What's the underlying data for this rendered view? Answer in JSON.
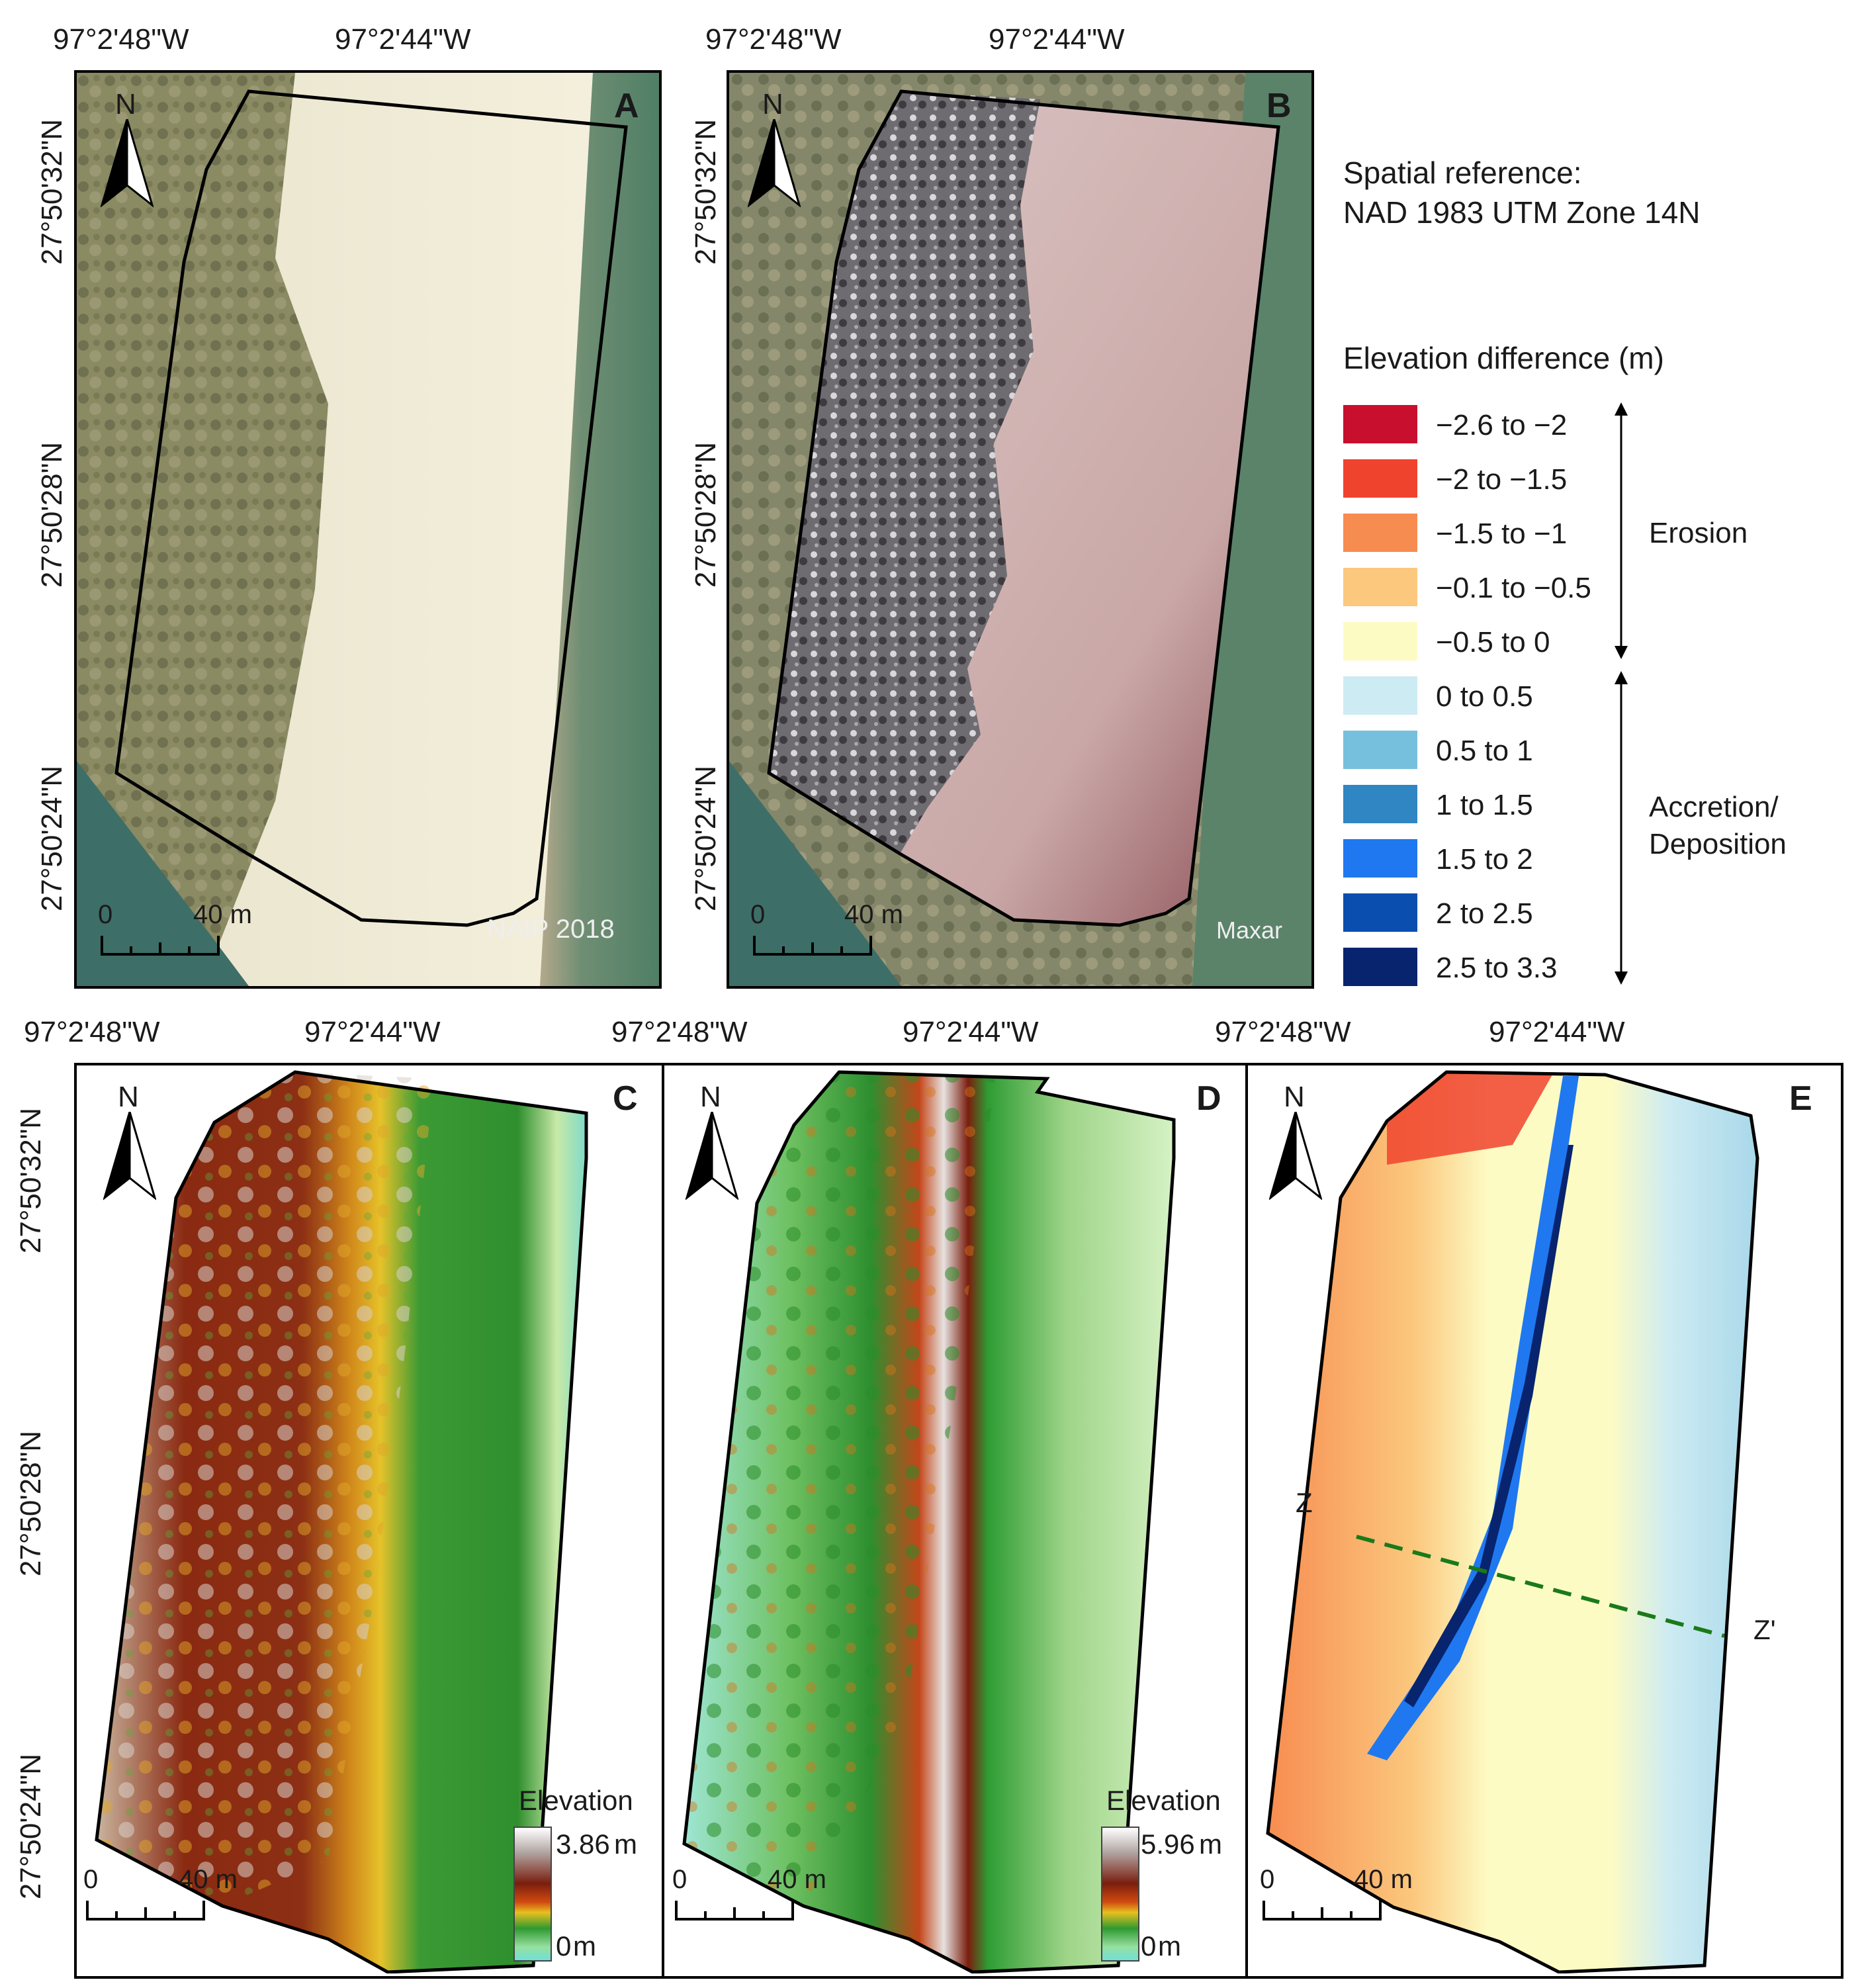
{
  "top_coords": {
    "lon_left": "97°2'48\"W",
    "lon_right": "97°2'44\"W",
    "lat_top": "27°50'32\"N",
    "lat_mid": "27°50'28\"N",
    "lat_bot": "27°50'24\"N"
  },
  "north_label": "N",
  "panels": {
    "A": {
      "letter": "A",
      "credit": "NAIP 2018",
      "scale_zero": "0",
      "scale_end": "40 m"
    },
    "B": {
      "letter": "B",
      "credit": "Maxar",
      "scale_zero": "0",
      "scale_end": "40 m"
    },
    "C": {
      "letter": "C",
      "scale_zero": "0",
      "scale_end": "40 m",
      "elev_title": "Elevation",
      "elev_max": "3.86",
      "elev_min": "0",
      "unit": "m"
    },
    "D": {
      "letter": "D",
      "scale_zero": "0",
      "scale_end": "40 m",
      "elev_title": "Elevation",
      "elev_max": "5.96",
      "elev_min": "0",
      "unit": "m"
    },
    "E": {
      "letter": "E",
      "scale_zero": "0",
      "scale_end": "40 m",
      "profile_start": "Z",
      "profile_end": "Z'"
    }
  },
  "spatial_reference": {
    "line1": "Spatial reference:",
    "line2": "NAD 1983 UTM Zone 14N"
  },
  "legend": {
    "title": "Elevation difference (m)",
    "items": [
      {
        "label": "−2.6 to −2",
        "color": "#c8102e"
      },
      {
        "label": "−2 to −1.5",
        "color": "#f0432e"
      },
      {
        "label": "−1.5 to −1",
        "color": "#f78c50"
      },
      {
        "label": "−0.1 to −0.5",
        "color": "#fbc87e"
      },
      {
        "label": "−0.5 to 0",
        "color": "#fdfbc4"
      },
      {
        "label": "0 to 0.5",
        "color": "#cdebf2"
      },
      {
        "label": "0.5 to 1",
        "color": "#76c0de"
      },
      {
        "label": "1 to 1.5",
        "color": "#2f86c3"
      },
      {
        "label": "1.5 to 2",
        "color": "#1f78f0"
      },
      {
        "label": "2 to 2.5",
        "color": "#0a4fb0"
      },
      {
        "label": "2.5 to 3.3",
        "color": "#08246e"
      }
    ],
    "erosion_label": "Erosion",
    "accretion_label_1": "Accretion/",
    "accretion_label_2": "Deposition"
  }
}
